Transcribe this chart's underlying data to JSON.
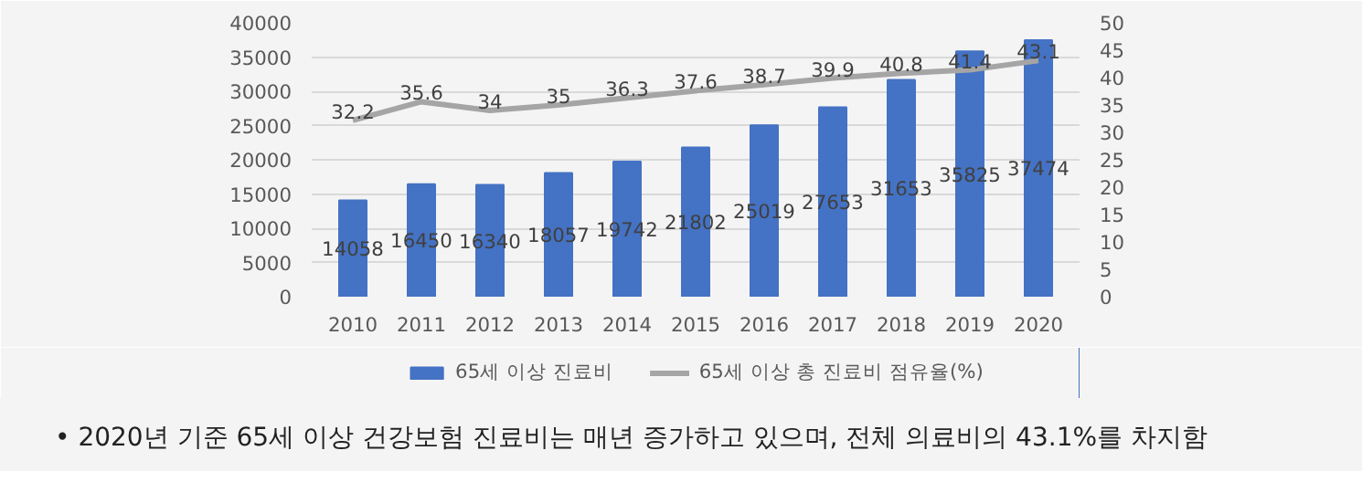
{
  "chart_data": {
    "type": "bar",
    "categories": [
      "2010",
      "2011",
      "2012",
      "2013",
      "2014",
      "2015",
      "2016",
      "2017",
      "2018",
      "2019",
      "2020"
    ],
    "series": [
      {
        "name": "65세 이상 진료비",
        "color": "#4472c4",
        "values": [
          14058,
          16450,
          16340,
          18057,
          19742,
          21802,
          25019,
          27653,
          31653,
          35825,
          37474
        ]
      },
      {
        "name": "65세 이상 총 진료비 점유율(%)",
        "type": "line",
        "axis": "y2",
        "color": "#a5a5a5",
        "values": [
          32.2,
          35.6,
          34,
          35,
          36.3,
          37.6,
          38.7,
          39.9,
          40.8,
          41.4,
          43.1
        ]
      }
    ],
    "ylim": [
      0,
      40000
    ],
    "yticks": [
      0,
      5000,
      10000,
      15000,
      20000,
      25000,
      30000,
      35000,
      40000
    ],
    "y2lim": [
      0,
      50
    ],
    "y2ticks": [
      0,
      5,
      10,
      15,
      20,
      25,
      30,
      35,
      40,
      45,
      50
    ],
    "grid": "y",
    "legend": "bottom",
    "data_labels": true,
    "marker": "none",
    "annotations": [
      "•   2020년 기준 65세 이상 건강보험 진료비는 매년 증가하고 있으며, 전체 의료비의 43.1%를 차지함"
    ]
  }
}
